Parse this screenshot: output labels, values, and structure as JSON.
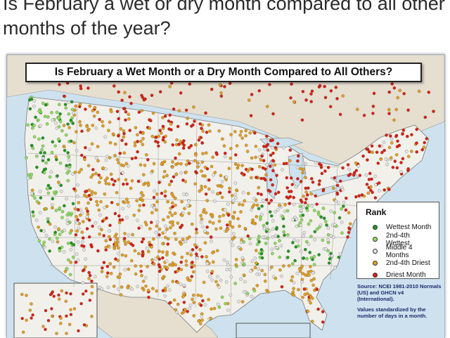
{
  "page": {
    "heading": "Is February a wet or dry month compared to all other months of the year?"
  },
  "map": {
    "title": "Is February a Wet Month or a Dry Month Compared to All Others?",
    "legend": {
      "title": "Rank",
      "items": [
        {
          "label": "Wettest Month",
          "color": "#1f9a1f"
        },
        {
          "label": "2nd-4th Wettest",
          "color": "#8be05a"
        },
        {
          "label": "Middle 4 Months",
          "color": "#e6e6e6"
        },
        {
          "label": "2nd-4th Driest",
          "color": "#e8a01c"
        },
        {
          "label": "Driest Month",
          "color": "#e01e10"
        }
      ]
    },
    "source": "Source:  NCEI 1981-2010 Normals (US) and GHCN v4 (International).",
    "note": "Values standardized by the number of days in a month.",
    "colors": {
      "water": "#cde2ee",
      "land_us": "#f2f0ea",
      "land_other": "#e6dfd0",
      "border": "#7a7a7a"
    }
  }
}
